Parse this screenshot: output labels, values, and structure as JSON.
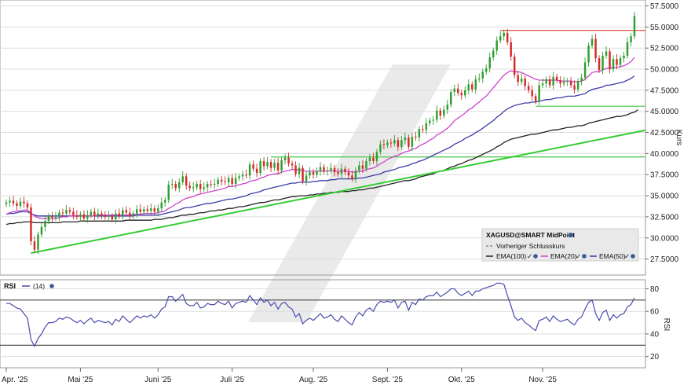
{
  "colors": {
    "up": "#2e9f2e",
    "down": "#d42a2a",
    "ema20": "#cc44cc",
    "ema50": "#3b3ba8",
    "ema100": "#222222",
    "trend": "#33cc33",
    "support": "#55cc55",
    "resistance": "#e05555",
    "rsi": "#4a4ab0",
    "grid": "#dddddd",
    "panel_border": "#999999"
  },
  "chart_data": [
    {
      "type": "candlestick",
      "instrument": "XAGUSD@SMART MidPoint",
      "ylabel": "Kurs",
      "ylim": [
        25.6,
        58.2
      ],
      "yticks": [
        27.5,
        30.0,
        32.5,
        35.0,
        37.5,
        40.0,
        42.5,
        45.0,
        47.5,
        50.0,
        52.5,
        55.0,
        57.5
      ],
      "ytick_labels": [
        "27.5000",
        "30.0000",
        "32.5000",
        "35.0000",
        "37.5000",
        "40.0000",
        "42.5000",
        "45.0000",
        "47.5000",
        "50.0000",
        "52.5000",
        "55.0000",
        "57.5000"
      ],
      "x_tick_labels": [
        {
          "label": "Apr. '25",
          "index": 0
        },
        {
          "label": "Mai '25",
          "index": 21
        },
        {
          "label": "Juni '25",
          "index": 43
        },
        {
          "label": "Juli '25",
          "index": 64
        },
        {
          "label": "Aug. '25",
          "index": 87
        },
        {
          "label": "Sept. '25",
          "index": 108
        },
        {
          "label": "Okt. '25",
          "index": 129
        },
        {
          "label": "Nov. '25",
          "index": 152
        }
      ],
      "closes": [
        34.2,
        34.4,
        34.1,
        33.8,
        34.3,
        34.1,
        33.6,
        29.6,
        28.6,
        30.4,
        31.3,
        32.0,
        32.6,
        32.4,
        32.5,
        33.0,
        32.9,
        33.3,
        33.1,
        32.7,
        32.5,
        32.8,
        32.3,
        32.7,
        33.1,
        32.6,
        32.9,
        32.7,
        32.5,
        32.6,
        32.2,
        32.9,
        32.6,
        33.3,
        33.0,
        32.6,
        32.9,
        33.4,
        33.1,
        33.4,
        33.2,
        33.5,
        33.1,
        33.5,
        34.2,
        34.5,
        36.3,
        36.4,
        35.9,
        36.6,
        37.3,
        36.2,
        35.9,
        36.0,
        36.4,
        35.8,
        36.0,
        36.4,
        36.3,
        36.4,
        36.9,
        36.7,
        36.6,
        37.1,
        36.4,
        37.1,
        37.3,
        37.5,
        37.4,
        38.7,
        38.2,
        37.7,
        39.1,
        38.5,
        39.0,
        38.3,
        38.9,
        38.0,
        39.2,
        39.5,
        38.8,
        38.6,
        37.6,
        38.3,
        36.7,
        37.4,
        37.8,
        37.5,
        37.9,
        38.4,
        37.9,
        38.0,
        38.3,
        37.8,
        37.6,
        38.2,
        37.8,
        37.4,
        37.0,
        38.0,
        38.6,
        38.2,
        39.1,
        39.5,
        39.1,
        40.2,
        41.1,
        41.0,
        41.3,
        41.2,
        41.6,
        40.8,
        41.6,
        41.9,
        40.8,
        42.0,
        41.9,
        42.9,
        42.8,
        43.6,
        43.9,
        44.0,
        45.1,
        44.5,
        45.2,
        45.8,
        47.3,
        47.7,
        47.2,
        46.9,
        47.5,
        48.2,
        47.6,
        48.8,
        48.9,
        49.7,
        50.1,
        51.4,
        52.2,
        53.4,
        53.9,
        54.3,
        53.2,
        51.5,
        49.3,
        48.5,
        48.9,
        48.0,
        47.5,
        46.8,
        46.2,
        48.1,
        48.3,
        48.8,
        48.1,
        49.1,
        48.7,
        48.3,
        48.5,
        48.6,
        48.1,
        47.6,
        48.6,
        49.0,
        50.8,
        52.8,
        53.6,
        51.3,
        49.9,
        51.6,
        52.1,
        50.0,
        51.2,
        50.5,
        51.3,
        51.6,
        53.2,
        53.9,
        56.3
      ],
      "ema20": [
        32.8,
        33.0,
        33.1,
        33.2,
        33.2,
        33.3,
        33.3,
        32.9,
        32.6,
        32.4,
        32.3,
        32.3,
        32.3,
        32.3,
        32.3,
        32.4,
        32.5,
        32.5,
        32.6,
        32.6,
        32.6,
        32.6,
        32.6,
        32.6,
        32.6,
        32.6,
        32.7,
        32.7,
        32.7,
        32.7,
        32.7,
        32.7,
        32.7,
        32.7,
        32.7,
        32.7,
        32.8,
        32.8,
        32.8,
        32.9,
        32.9,
        32.9,
        32.9,
        33.0,
        33.1,
        33.2,
        33.5,
        33.7,
        34.0,
        34.2,
        34.5,
        34.7,
        34.8,
        34.9,
        35.1,
        35.2,
        35.3,
        35.4,
        35.5,
        35.6,
        35.7,
        35.8,
        35.9,
        36.1,
        36.1,
        36.2,
        36.3,
        36.4,
        36.5,
        36.7,
        36.8,
        36.9,
        37.1,
        37.2,
        37.4,
        37.5,
        37.6,
        37.6,
        37.8,
        37.9,
        38.0,
        38.1,
        38.1,
        38.1,
        38.0,
        37.9,
        37.9,
        37.9,
        37.9,
        37.9,
        37.9,
        37.9,
        38.0,
        37.9,
        37.9,
        37.9,
        37.9,
        37.9,
        37.8,
        37.8,
        37.9,
        37.9,
        38.1,
        38.2,
        38.3,
        38.5,
        38.8,
        39.0,
        39.3,
        39.5,
        39.7,
        39.8,
        40.0,
        40.2,
        40.3,
        40.5,
        40.6,
        40.9,
        41.1,
        41.3,
        41.6,
        41.8,
        42.2,
        42.4,
        42.7,
        43.0,
        43.4,
        43.9,
        44.2,
        44.5,
        44.8,
        45.2,
        45.4,
        45.8,
        46.1,
        46.5,
        46.8,
        47.3,
        47.8,
        48.3,
        48.8,
        49.3,
        49.6,
        49.8,
        49.7,
        49.7,
        49.6,
        49.4,
        49.2,
        49.0,
        48.8,
        48.7,
        48.7,
        48.7,
        48.7,
        48.7,
        48.7,
        48.6,
        48.6,
        48.6,
        48.6,
        48.5,
        48.5,
        48.6,
        48.8,
        49.2,
        49.6,
        49.7,
        49.7,
        49.9,
        50.1,
        50.1,
        50.2,
        50.2,
        50.3,
        50.4,
        50.6,
        50.9,
        51.4
      ],
      "ema50": [
        32.8,
        32.9,
        32.9,
        33.0,
        33.1,
        33.1,
        33.1,
        32.9,
        32.7,
        32.6,
        32.6,
        32.6,
        32.6,
        32.6,
        32.6,
        32.6,
        32.6,
        32.6,
        32.6,
        32.6,
        32.6,
        32.6,
        32.6,
        32.6,
        32.6,
        32.6,
        32.6,
        32.6,
        32.6,
        32.6,
        32.6,
        32.6,
        32.6,
        32.6,
        32.6,
        32.6,
        32.6,
        32.7,
        32.7,
        32.7,
        32.7,
        32.7,
        32.7,
        32.7,
        32.8,
        32.9,
        33.0,
        33.1,
        33.2,
        33.3,
        33.5,
        33.6,
        33.6,
        33.7,
        33.8,
        33.9,
        34.0,
        34.1,
        34.1,
        34.2,
        34.3,
        34.4,
        34.5,
        34.6,
        34.6,
        34.7,
        34.8,
        34.9,
        35.0,
        35.2,
        35.3,
        35.4,
        35.5,
        35.7,
        35.8,
        35.9,
        36.0,
        36.1,
        36.2,
        36.3,
        36.4,
        36.5,
        36.5,
        36.6,
        36.6,
        36.6,
        36.6,
        36.7,
        36.7,
        36.8,
        36.8,
        36.8,
        36.9,
        36.9,
        37.0,
        37.0,
        37.0,
        37.0,
        37.0,
        37.0,
        37.1,
        37.1,
        37.2,
        37.3,
        37.4,
        37.5,
        37.6,
        37.8,
        37.9,
        38.0,
        38.1,
        38.3,
        38.4,
        38.5,
        38.6,
        38.8,
        38.9,
        39.1,
        39.2,
        39.4,
        39.6,
        39.8,
        40.0,
        40.2,
        40.4,
        40.6,
        40.8,
        41.1,
        41.3,
        41.5,
        41.8,
        42.0,
        42.2,
        42.5,
        42.7,
        43.0,
        43.3,
        43.6,
        43.9,
        44.3,
        44.6,
        45.0,
        45.3,
        45.5,
        45.7,
        45.8,
        45.9,
        46.0,
        46.0,
        46.1,
        46.1,
        46.2,
        46.3,
        46.4,
        46.4,
        46.5,
        46.6,
        46.6,
        46.7,
        46.8,
        46.8,
        46.8,
        46.9,
        47.0,
        47.1,
        47.4,
        47.6,
        47.7,
        47.8,
        47.9,
        48.1,
        48.1,
        48.2,
        48.3,
        48.4,
        48.5,
        48.7,
        48.9,
        49.2
      ],
      "ema100": [
        31.6,
        31.7,
        31.7,
        31.8,
        31.8,
        31.9,
        31.9,
        31.9,
        31.8,
        31.8,
        31.8,
        31.8,
        31.8,
        31.8,
        31.8,
        31.8,
        31.9,
        31.9,
        31.9,
        31.9,
        31.9,
        32.0,
        32.0,
        32.0,
        32.0,
        32.0,
        32.0,
        32.0,
        32.0,
        32.0,
        32.0,
        32.0,
        32.0,
        32.0,
        32.1,
        32.1,
        32.1,
        32.1,
        32.1,
        32.1,
        32.1,
        32.1,
        32.2,
        32.2,
        32.2,
        32.3,
        32.4,
        32.4,
        32.5,
        32.6,
        32.7,
        32.7,
        32.8,
        32.8,
        32.9,
        33.0,
        33.0,
        33.1,
        33.2,
        33.2,
        33.3,
        33.3,
        33.4,
        33.5,
        33.5,
        33.6,
        33.7,
        33.7,
        33.8,
        33.9,
        34.0,
        34.1,
        34.2,
        34.2,
        34.3,
        34.4,
        34.5,
        34.5,
        34.6,
        34.7,
        34.8,
        34.9,
        34.9,
        35.0,
        35.0,
        35.0,
        35.1,
        35.1,
        35.2,
        35.2,
        35.3,
        35.3,
        35.4,
        35.4,
        35.4,
        35.5,
        35.5,
        35.5,
        35.6,
        35.6,
        35.7,
        35.7,
        35.8,
        35.9,
        35.9,
        36.0,
        36.1,
        36.2,
        36.3,
        36.4,
        36.5,
        36.6,
        36.7,
        36.8,
        36.8,
        36.9,
        37.0,
        37.2,
        37.3,
        37.4,
        37.5,
        37.6,
        37.8,
        37.9,
        38.0,
        38.2,
        38.4,
        38.5,
        38.7,
        38.8,
        39.0,
        39.2,
        39.3,
        39.5,
        39.7,
        39.9,
        40.1,
        40.3,
        40.5,
        40.8,
        41.0,
        41.3,
        41.5,
        41.7,
        41.8,
        41.9,
        42.0,
        42.1,
        42.2,
        42.3,
        42.3,
        42.4,
        42.5,
        42.6,
        42.7,
        42.8,
        42.8,
        42.9,
        43.0,
        43.1,
        43.1,
        43.2,
        43.3,
        43.3,
        43.4,
        43.6,
        43.7,
        43.8,
        43.9,
        44.0,
        44.1,
        44.2,
        44.3,
        44.4,
        44.4,
        44.5,
        44.6,
        44.8,
        44.9,
        45.2
      ],
      "trendline": {
        "from": [
          7,
          28.2
        ],
        "to": [
          194,
          43.5
        ]
      },
      "horizontal_lines": [
        {
          "kind": "resistance",
          "value": 54.6,
          "from_index": 140
        },
        {
          "kind": "support",
          "value": 45.6,
          "from_index": 150
        },
        {
          "kind": "support",
          "value": 39.6,
          "from_index": 75
        }
      ],
      "legend": {
        "title": "XAGUSD@SMART MidPoint",
        "prev_close": "Vorheriger Schlusskurs",
        "ema100": "EMA(100)",
        "ema20": "EMA(20)",
        "ema50": "EMA(50)"
      }
    },
    {
      "type": "line",
      "name": "RSI",
      "label": "RSI",
      "period_label": "(14)",
      "ylabel": "RSI",
      "ylim": [
        10,
        88
      ],
      "yticks": [
        20,
        40,
        60,
        80
      ],
      "levels": [
        30,
        70
      ],
      "values": [
        67,
        67,
        65,
        63,
        62,
        58,
        54,
        35,
        29,
        36,
        40,
        46,
        50,
        50,
        51,
        54,
        53,
        55,
        54,
        52,
        50,
        52,
        49,
        52,
        54,
        50,
        52,
        51,
        50,
        51,
        48,
        53,
        51,
        56,
        53,
        50,
        53,
        56,
        54,
        56,
        55,
        57,
        54,
        57,
        62,
        64,
        73,
        73,
        69,
        72,
        75,
        67,
        65,
        65,
        68,
        63,
        64,
        67,
        66,
        66,
        69,
        67,
        66,
        69,
        63,
        67,
        68,
        69,
        68,
        74,
        70,
        66,
        72,
        68,
        70,
        65,
        68,
        62,
        67,
        68,
        64,
        62,
        55,
        58,
        49,
        52,
        54,
        52,
        55,
        58,
        54,
        55,
        57,
        53,
        51,
        56,
        53,
        50,
        48,
        55,
        59,
        56,
        61,
        63,
        60,
        66,
        69,
        68,
        69,
        68,
        70,
        63,
        68,
        69,
        61,
        68,
        66,
        71,
        70,
        73,
        74,
        74,
        77,
        73,
        75,
        77,
        80,
        80,
        76,
        74,
        76,
        78,
        74,
        78,
        78,
        80,
        81,
        82,
        83,
        85,
        85,
        84,
        74,
        65,
        55,
        52,
        54,
        50,
        48,
        45,
        43,
        52,
        53,
        55,
        51,
        56,
        53,
        51,
        52,
        53,
        50,
        48,
        53,
        55,
        62,
        68,
        70,
        58,
        52,
        59,
        61,
        52,
        57,
        54,
        57,
        58,
        64,
        66,
        72
      ]
    }
  ]
}
